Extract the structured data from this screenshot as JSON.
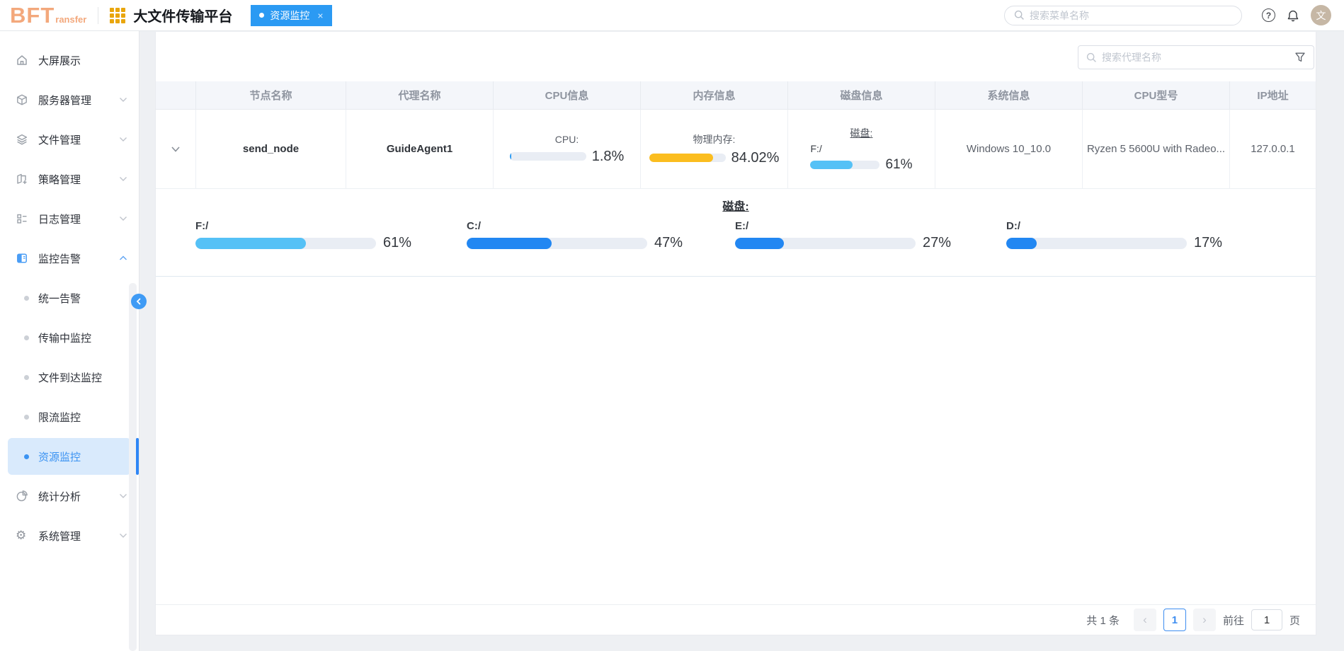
{
  "header": {
    "logo_text": "BFT",
    "logo_sub": "ransfer",
    "app_title": "大文件传输平台",
    "tab": {
      "label": "资源监控",
      "close": "×",
      "color": "#2B9AF3"
    },
    "search_placeholder": "搜索菜单名称",
    "help_glyph": "?",
    "avatar_text": "文"
  },
  "sidebar": {
    "menu": [
      {
        "label": "大屏展示",
        "icon": "home-icon"
      },
      {
        "label": "服务器管理",
        "icon": "server-icon"
      },
      {
        "label": "文件管理",
        "icon": "files-icon"
      },
      {
        "label": "策略管理",
        "icon": "strategy-icon"
      },
      {
        "label": "日志管理",
        "icon": "logs-icon"
      },
      {
        "label": "监控告警",
        "icon": "monitor-icon"
      },
      {
        "label": "统计分析",
        "icon": "stats-icon"
      },
      {
        "label": "系统管理",
        "icon": "settings-icon"
      }
    ],
    "submenu": [
      "统一告警",
      "传输中监控",
      "文件到达监控",
      "限流监控",
      "资源监控"
    ],
    "active_item": "资源监控"
  },
  "toolbar": {
    "search_placeholder": "搜索代理名称"
  },
  "table": {
    "headers": [
      "节点名称",
      "代理名称",
      "CPU信息",
      "内存信息",
      "磁盘信息",
      "系统信息",
      "CPU型号",
      "IP地址"
    ],
    "row": {
      "node_name": "send_node",
      "agent_name": "GuideAgent1",
      "cpu": {
        "label": "CPU:",
        "percent": "1.8%",
        "value": 1.8,
        "color": "#2B9AF3"
      },
      "memory": {
        "label": "物理内存:",
        "percent": "84.02%",
        "value": 84.02,
        "color": "#FBBD1F"
      },
      "disk": {
        "label": "磁盘:",
        "drive": "F:/",
        "percent": "61%",
        "value": 61,
        "color": "#55C1F6"
      },
      "system": "Windows 10_10.0",
      "cpu_model": "Ryzen 5 5600U with Radeo...",
      "ip": "127.0.0.1"
    }
  },
  "expanded": {
    "title": "磁盘:",
    "disks": [
      {
        "name": "F:/",
        "percent": "61%",
        "value": 61,
        "color": "#55C1F6"
      },
      {
        "name": "C:/",
        "percent": "47%",
        "value": 47,
        "color": "#2287F2"
      },
      {
        "name": "E:/",
        "percent": "27%",
        "value": 27,
        "color": "#2287F2"
      },
      {
        "name": "D:/",
        "percent": "17%",
        "value": 17,
        "color": "#2287F2"
      }
    ]
  },
  "pagination": {
    "total": "共 1 条",
    "prev": "‹",
    "next": "›",
    "page": "1",
    "goto_label": "前往",
    "goto_value": "1",
    "unit_label": "页"
  }
}
